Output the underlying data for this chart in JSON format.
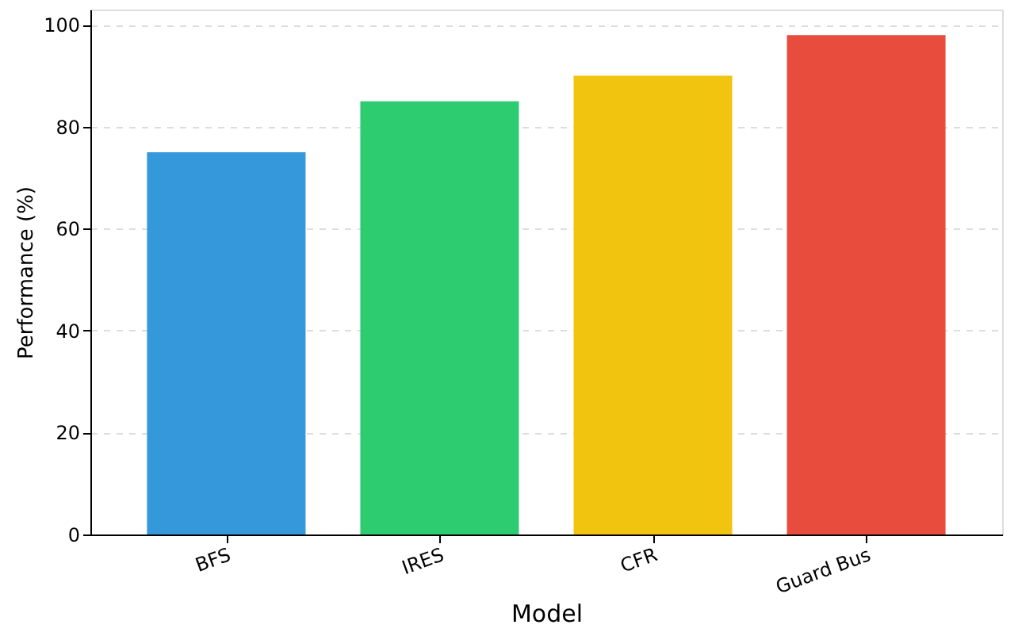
{
  "chart_data": {
    "type": "bar",
    "xlabel": "Model",
    "ylabel": "Performance (%)",
    "categories": [
      "BFS",
      "IRES",
      "CFR",
      "Guard Bus"
    ],
    "values": [
      75,
      85,
      90,
      98
    ],
    "colors": [
      "#3498db",
      "#2ecc71",
      "#f1c40f",
      "#e74c3c"
    ],
    "ylim": [
      0,
      103
    ],
    "yticks": [
      0,
      20,
      40,
      60,
      80,
      100
    ],
    "grid": "y",
    "legend": false
  }
}
